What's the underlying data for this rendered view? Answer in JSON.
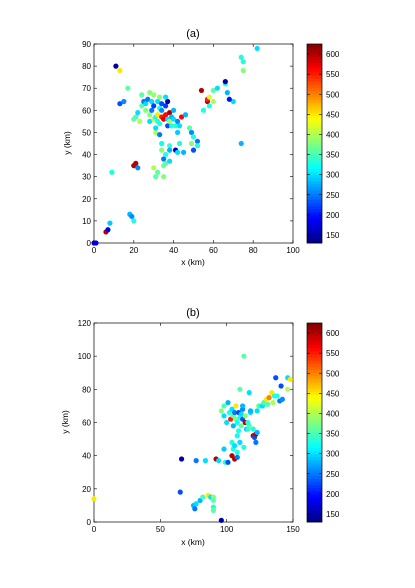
{
  "chart_data": [
    {
      "type": "scatter",
      "title": "(a)",
      "xlabel": "x (km)",
      "ylabel": "y (km)",
      "xlim": [
        0,
        100
      ],
      "ylim": [
        0,
        90
      ],
      "xticks": [
        0,
        20,
        40,
        60,
        80,
        100
      ],
      "yticks": [
        0,
        10,
        20,
        30,
        40,
        50,
        60,
        70,
        80,
        90
      ],
      "colorbar": {
        "range": [
          130,
          625
        ],
        "ticks": [
          150,
          200,
          250,
          300,
          350,
          400,
          450,
          500,
          550,
          600
        ]
      },
      "points": [
        [
          0,
          0,
          150
        ],
        [
          1,
          0,
          180
        ],
        [
          6,
          5,
          600
        ],
        [
          7,
          6,
          180
        ],
        [
          8,
          9,
          290
        ],
        [
          9,
          32,
          330
        ],
        [
          11,
          80,
          150
        ],
        [
          13,
          78,
          450
        ],
        [
          13,
          63,
          230
        ],
        [
          15,
          64,
          260
        ],
        [
          17,
          70,
          360
        ],
        [
          18,
          13,
          280
        ],
        [
          19,
          12,
          260
        ],
        [
          20,
          10,
          330
        ],
        [
          20,
          35,
          600
        ],
        [
          21,
          36,
          600
        ],
        [
          22,
          34,
          260
        ],
        [
          21,
          57,
          350
        ],
        [
          22,
          59,
          300
        ],
        [
          23,
          55,
          400
        ],
        [
          24,
          62,
          360
        ],
        [
          24,
          67,
          360
        ],
        [
          25,
          64,
          250
        ],
        [
          26,
          60,
          380
        ],
        [
          26,
          63,
          300
        ],
        [
          27,
          65,
          250
        ],
        [
          28,
          58,
          380
        ],
        [
          28,
          55,
          300
        ],
        [
          29,
          64,
          300
        ],
        [
          29,
          60,
          250
        ],
        [
          30,
          67,
          390
        ],
        [
          30,
          56,
          400
        ],
        [
          30,
          62,
          220
        ],
        [
          31,
          50,
          400
        ],
        [
          31,
          57,
          320
        ],
        [
          31,
          52,
          300
        ],
        [
          32,
          64,
          300
        ],
        [
          32,
          58,
          450
        ],
        [
          32,
          55,
          330
        ],
        [
          32,
          32,
          360
        ],
        [
          33,
          61,
          330
        ],
        [
          33,
          49,
          250
        ],
        [
          33,
          54,
          330
        ],
        [
          33,
          66,
          380
        ],
        [
          34,
          57,
          550
        ],
        [
          34,
          42,
          380
        ],
        [
          34,
          45,
          320
        ],
        [
          34,
          60,
          260
        ],
        [
          34,
          63,
          230
        ],
        [
          35,
          56,
          580
        ],
        [
          35,
          38,
          250
        ],
        [
          35,
          35,
          370
        ],
        [
          36,
          58,
          560
        ],
        [
          36,
          40,
          330
        ],
        [
          36,
          36,
          360
        ],
        [
          36,
          62,
          220
        ],
        [
          37,
          64,
          150
        ],
        [
          37,
          53,
          230
        ],
        [
          37,
          56,
          300
        ],
        [
          38,
          59,
          600
        ],
        [
          38,
          55,
          400
        ],
        [
          38,
          44,
          340
        ],
        [
          38,
          42,
          280
        ],
        [
          38,
          37,
          300
        ],
        [
          39,
          53,
          330
        ],
        [
          39,
          57,
          280
        ],
        [
          40,
          60,
          280
        ],
        [
          40,
          56,
          300
        ],
        [
          41,
          42,
          150
        ],
        [
          41,
          53,
          330
        ],
        [
          42,
          55,
          260
        ],
        [
          42,
          41,
          300
        ],
        [
          43,
          53,
          300
        ],
        [
          44,
          57,
          560
        ],
        [
          45,
          41,
          280
        ],
        [
          46,
          58,
          280
        ],
        [
          48,
          52,
          360
        ],
        [
          49,
          50,
          260
        ],
        [
          49,
          45,
          380
        ],
        [
          50,
          48,
          330
        ],
        [
          50,
          42,
          230
        ],
        [
          52,
          46,
          250
        ],
        [
          54,
          69,
          600
        ],
        [
          55,
          60,
          330
        ],
        [
          57,
          64,
          600
        ],
        [
          57,
          65,
          550
        ],
        [
          58,
          66,
          420
        ],
        [
          58,
          62,
          330
        ],
        [
          60,
          64,
          400
        ],
        [
          60,
          69,
          360
        ],
        [
          62,
          70,
          300
        ],
        [
          66,
          72,
          330
        ],
        [
          66,
          73,
          150
        ],
        [
          67,
          68,
          280
        ],
        [
          70,
          64,
          300
        ],
        [
          74,
          45,
          280
        ],
        [
          74,
          84,
          330
        ],
        [
          75,
          82,
          330
        ],
        [
          75,
          78,
          380
        ],
        [
          82,
          88,
          300
        ],
        [
          68,
          65,
          200
        ],
        [
          43,
          45,
          330
        ],
        [
          30,
          34,
          400
        ],
        [
          31,
          30,
          360
        ],
        [
          35,
          30,
          380
        ],
        [
          20,
          56,
          360
        ],
        [
          36,
          66,
          300
        ],
        [
          28,
          68,
          380
        ],
        [
          42,
          50,
          290
        ],
        [
          52,
          44,
          330
        ]
      ]
    },
    {
      "type": "scatter",
      "title": "(b)",
      "xlabel": "x (km)",
      "ylabel": "y (km)",
      "xlim": [
        0,
        150
      ],
      "ylim": [
        0,
        120
      ],
      "xticks": [
        0,
        50,
        100,
        150
      ],
      "yticks": [
        0,
        20,
        40,
        60,
        80,
        100,
        120
      ],
      "colorbar": {
        "range": [
          130,
          625
        ],
        "ticks": [
          150,
          200,
          250,
          300,
          350,
          400,
          450,
          500,
          550,
          600
        ]
      },
      "points": [
        [
          0,
          14,
          450
        ],
        [
          65,
          18,
          230
        ],
        [
          66,
          38,
          150
        ],
        [
          75,
          10,
          280
        ],
        [
          76,
          8,
          250
        ],
        [
          77,
          37,
          250
        ],
        [
          77,
          11,
          300
        ],
        [
          80,
          13,
          280
        ],
        [
          82,
          15,
          350
        ],
        [
          84,
          37,
          300
        ],
        [
          86,
          16,
          450
        ],
        [
          88,
          15,
          300
        ],
        [
          90,
          9,
          330
        ],
        [
          90,
          15,
          380
        ],
        [
          90,
          13,
          360
        ],
        [
          90,
          7,
          360
        ],
        [
          92,
          38,
          600
        ],
        [
          94,
          37,
          300
        ],
        [
          96,
          1,
          150
        ],
        [
          96,
          67,
          380
        ],
        [
          98,
          64,
          300
        ],
        [
          98,
          44,
          290
        ],
        [
          99,
          36,
          330
        ],
        [
          100,
          60,
          300
        ],
        [
          101,
          72,
          280
        ],
        [
          101,
          36,
          230
        ],
        [
          102,
          66,
          330
        ],
        [
          103,
          62,
          550
        ],
        [
          104,
          68,
          300
        ],
        [
          104,
          48,
          330
        ],
        [
          104,
          40,
          600
        ],
        [
          105,
          64,
          360
        ],
        [
          105,
          58,
          280
        ],
        [
          105,
          44,
          330
        ],
        [
          106,
          38,
          600
        ],
        [
          106,
          66,
          250
        ],
        [
          107,
          70,
          450
        ],
        [
          107,
          62,
          380
        ],
        [
          108,
          60,
          320
        ],
        [
          108,
          42,
          330
        ],
        [
          108,
          39,
          250
        ],
        [
          108,
          52,
          320
        ],
        [
          109,
          66,
          230
        ],
        [
          109,
          55,
          330
        ],
        [
          110,
          80,
          360
        ],
        [
          110,
          63,
          330
        ],
        [
          110,
          48,
          300
        ],
        [
          111,
          58,
          360
        ],
        [
          111,
          65,
          300
        ],
        [
          112,
          68,
          260
        ],
        [
          112,
          62,
          230
        ],
        [
          112,
          70,
          280
        ],
        [
          113,
          100,
          360
        ],
        [
          113,
          45,
          330
        ],
        [
          114,
          60,
          600
        ],
        [
          114,
          64,
          380
        ],
        [
          115,
          56,
          280
        ],
        [
          116,
          56,
          330
        ],
        [
          117,
          58,
          360
        ],
        [
          117,
          78,
          300
        ],
        [
          118,
          66,
          300
        ],
        [
          118,
          67,
          280
        ],
        [
          120,
          52,
          600
        ],
        [
          120,
          56,
          330
        ],
        [
          121,
          51,
          230
        ],
        [
          122,
          53,
          600
        ],
        [
          122,
          48,
          250
        ],
        [
          123,
          54,
          280
        ],
        [
          123,
          67,
          300
        ],
        [
          124,
          70,
          400
        ],
        [
          125,
          70,
          330
        ],
        [
          127,
          70,
          300
        ],
        [
          128,
          72,
          350
        ],
        [
          130,
          74,
          450
        ],
        [
          131,
          71,
          360
        ],
        [
          132,
          75,
          500
        ],
        [
          134,
          78,
          450
        ],
        [
          135,
          72,
          400
        ],
        [
          136,
          76,
          330
        ],
        [
          137,
          87,
          230
        ],
        [
          138,
          76,
          330
        ],
        [
          140,
          73,
          250
        ],
        [
          141,
          82,
          230
        ],
        [
          142,
          74,
          260
        ],
        [
          146,
          87,
          300
        ],
        [
          146,
          80,
          400
        ],
        [
          148,
          86,
          450
        ],
        [
          98,
          70,
          350
        ],
        [
          106,
          46,
          300
        ],
        [
          116,
          60,
          330
        ]
      ]
    }
  ]
}
